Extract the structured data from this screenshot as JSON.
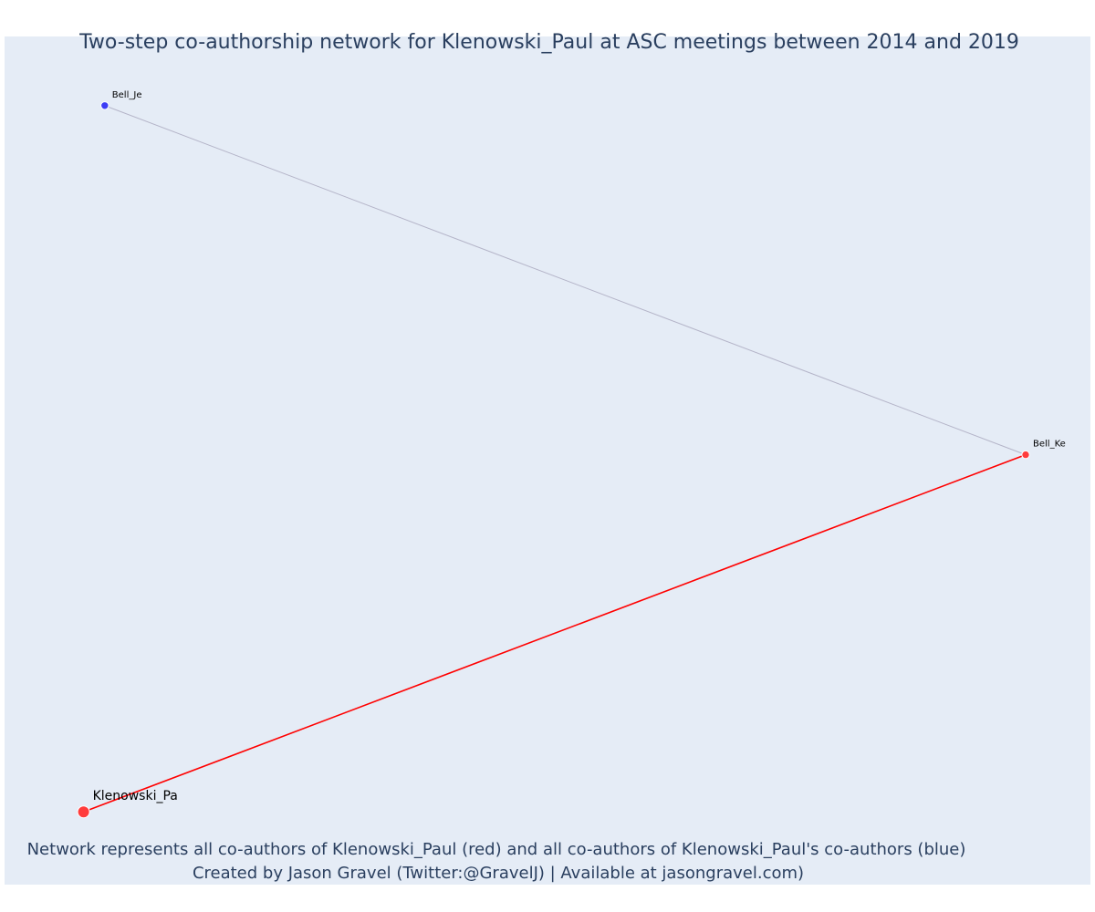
{
  "title": "Two-step co-authorship network for Klenowski_Paul at ASC meetings between 2014 and 2019",
  "footer": {
    "line1": "Network represents all co-authors of Klenowski_Paul (red) and all co-authors of Klenowski_Paul's co-authors (blue)",
    "line2": "Created by Jason Gravel (Twitter:@GravelJ) | Available at jasongravel.com)"
  },
  "colors": {
    "plot_background": "#e5ecf6",
    "title_text": "#2a3f5f",
    "ego": "#ff3b3b",
    "coauthor": "#ff3b3b",
    "second_step": "#3d3df5",
    "direct_edge": "#ff0000",
    "indirect_edge": "#b4b4c8"
  },
  "chart_data": {
    "type": "network",
    "x_range": [
      0,
      1
    ],
    "y_range": [
      0,
      1
    ],
    "grid": false,
    "nodes": [
      {
        "id": "Klenowski_Paul",
        "label": "Klenowski_Pa",
        "group": "ego",
        "x": 0.06,
        "y": 0.06
      },
      {
        "id": "Bell_Ke",
        "label": "Bell_Ke",
        "group": "coauthor",
        "x": 0.95,
        "y": 0.505
      },
      {
        "id": "Bell_Je",
        "label": "Bell_Je",
        "group": "second_step",
        "x": 0.08,
        "y": 0.94
      }
    ],
    "edges": [
      {
        "source": "Klenowski_Paul",
        "target": "Bell_Ke",
        "type": "direct"
      },
      {
        "source": "Bell_Ke",
        "target": "Bell_Je",
        "type": "indirect"
      }
    ]
  }
}
